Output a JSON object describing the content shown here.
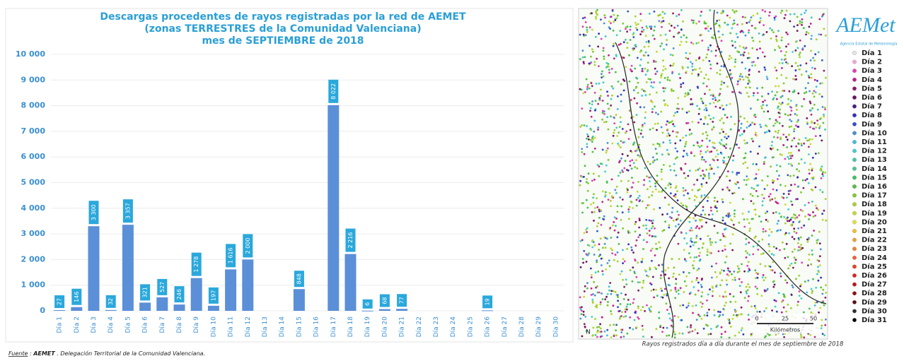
{
  "chart_data": {
    "type": "bar",
    "title_lines": [
      "Descargas procedentes de rayos registradas por la red de AEMET",
      "(zonas TERRESTRES de la Comunidad Valenciana)",
      "mes de SEPTIEMBRE de 2018"
    ],
    "categories": [
      "Día 1",
      "Día 2",
      "Día 3",
      "Día 4",
      "Día 5",
      "Día 6",
      "Día 7",
      "Día 8",
      "Día 9",
      "Día 10",
      "Día 11",
      "Día 12",
      "Día 13",
      "Día 14",
      "Día 15",
      "Día 16",
      "Día 17",
      "Día 18",
      "Día 19",
      "Día 20",
      "Día 21",
      "Día 22",
      "Día 23",
      "Día 24",
      "Día 25",
      "Día 26",
      "Día 27",
      "Día 28",
      "Día 29",
      "Día 30"
    ],
    "values": [
      27,
      146,
      3300,
      32,
      3357,
      321,
      527,
      246,
      1278,
      197,
      1616,
      2000,
      null,
      null,
      848,
      null,
      8022,
      2216,
      6,
      68,
      77,
      null,
      null,
      null,
      null,
      19,
      null,
      null,
      null,
      null
    ],
    "value_labels": [
      "27",
      "146",
      "3 300",
      "32",
      "3 357",
      "321",
      "527",
      "246",
      "1 278",
      "197",
      "1 616",
      "2 000",
      null,
      null,
      "848",
      null,
      "8 022",
      "2 216",
      "6",
      "68",
      "77",
      null,
      null,
      null,
      null,
      "19",
      null,
      null,
      null,
      null
    ],
    "color": "#5b8fd8",
    "label_color": "#2aa8dc",
    "ylim": [
      0,
      10000
    ],
    "yticks": [
      0,
      {
        "value": 1000,
        "label": "1 000"
      },
      {
        "value": 2000,
        "label": "2 000"
      },
      {
        "value": 3000,
        "label": "3 000"
      },
      {
        "value": 4000,
        "label": "4 000"
      },
      {
        "value": 5000,
        "label": "5 000"
      },
      {
        "value": 6000,
        "label": "6 000"
      },
      {
        "value": 7000,
        "label": "7 000"
      },
      {
        "value": 8000,
        "label": "8 000"
      },
      {
        "value": 9000,
        "label": "9 000"
      },
      {
        "value": 10000,
        "label": "10 000"
      }
    ],
    "grid": true
  },
  "map": {
    "caption": "Rayos registrados día a día durante el mes de septiembre de 2018",
    "scale_labels": [
      "0",
      "25",
      "50"
    ],
    "scale_unit": "Kilómetros",
    "north": "N",
    "legend": [
      {
        "label": "Día 1",
        "color": "#e6e6e6"
      },
      {
        "label": "Día 2",
        "color": "#f4a6d7"
      },
      {
        "label": "Día 3",
        "color": "#e040b0"
      },
      {
        "label": "Día 4",
        "color": "#c0208f"
      },
      {
        "label": "Día 5",
        "color": "#8b1a6b"
      },
      {
        "label": "Día 6",
        "color": "#6b1060"
      },
      {
        "label": "Día 7",
        "color": "#4a1a8a"
      },
      {
        "label": "Día 8",
        "color": "#3030c0"
      },
      {
        "label": "Día 9",
        "color": "#3050d0"
      },
      {
        "label": "Día 10",
        "color": "#4a90d8"
      },
      {
        "label": "Día 11",
        "color": "#40c0e0"
      },
      {
        "label": "Día 12",
        "color": "#40d0d0"
      },
      {
        "label": "Día 13",
        "color": "#40c8b0"
      },
      {
        "label": "Día 14",
        "color": "#40c890"
      },
      {
        "label": "Día 15",
        "color": "#40c060"
      },
      {
        "label": "Día 16",
        "color": "#50c040"
      },
      {
        "label": "Día 17",
        "color": "#80c830"
      },
      {
        "label": "Día 18",
        "color": "#a8d030"
      },
      {
        "label": "Día 19",
        "color": "#c8d830"
      },
      {
        "label": "Día 20",
        "color": "#e0e040"
      },
      {
        "label": "Día 21",
        "color": "#f0c030"
      },
      {
        "label": "Día 22",
        "color": "#f0a030"
      },
      {
        "label": "Día 23",
        "color": "#f08030"
      },
      {
        "label": "Día 24",
        "color": "#f06030"
      },
      {
        "label": "Día 25",
        "color": "#e84020"
      },
      {
        "label": "Día 26",
        "color": "#e02020"
      },
      {
        "label": "Día 27",
        "color": "#c01818"
      },
      {
        "label": "Día 28",
        "color": "#901010"
      },
      {
        "label": "Día 29",
        "color": "#601010"
      },
      {
        "label": "Día 30",
        "color": "#303030"
      },
      {
        "label": "Día 31",
        "color": "#000000"
      }
    ]
  },
  "logo": {
    "name": "AEMet",
    "agency": "Agencia Estatal de Meteorología"
  },
  "footer": {
    "label": "Fuente",
    "separator": " : ",
    "source": "AEMET",
    "text": " . Delegación Territorial de la Comunidad Valenciana."
  }
}
